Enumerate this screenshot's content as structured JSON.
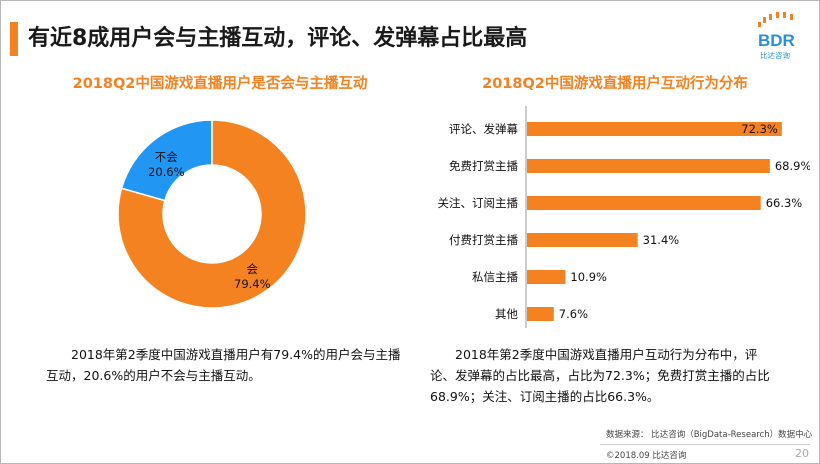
{
  "header": {
    "title": "有近8成用户会与主播互动，评论、发弹幕占比最高",
    "logo_text": "BDR",
    "logo_subtext": "比达咨询"
  },
  "colors": {
    "accent": "#F58220",
    "blue": "#2196F3"
  },
  "chart_data": [
    {
      "type": "pie",
      "donut": true,
      "title": "2018Q2中国游戏直播用户是否会与主播互动",
      "slices": [
        {
          "label": "不会",
          "value": 20.6,
          "display": "20.6%",
          "color": "#2196F3"
        },
        {
          "label": "会",
          "value": 79.4,
          "display": "79.4%",
          "color": "#F58220"
        }
      ]
    },
    {
      "type": "bar",
      "orientation": "horizontal",
      "title": "2018Q2中国游戏直播用户互动行为分布",
      "categories": [
        "评论、发弹幕",
        "免费打赏主播",
        "关注、订阅主播",
        "付费打赏主播",
        "私信主播",
        "其他"
      ],
      "values": [
        72.3,
        68.9,
        66.3,
        31.4,
        10.9,
        7.6
      ],
      "value_labels": [
        "72.3%",
        "68.9%",
        "66.3%",
        "31.4%",
        "10.9%",
        "7.6%"
      ],
      "xlim": [
        0,
        80
      ],
      "color": "#F58220",
      "grid": false
    }
  ],
  "descriptions": {
    "left": "2018年第2季度中国游戏直播用户有79.4%的用户会与主播互动，20.6%的用户不会与主播互动。",
    "right": "2018年第2季度中国游戏直播用户互动行为分布中，评论、发弹幕的占比最高，占比为72.3%；免费打赏主播的占比68.9%；关注、订阅主播的占比66.3%。"
  },
  "footer": {
    "source": "数据来源：  比达咨询（BigData-Research）数据中心",
    "copyright": "©2018.09  比达咨询",
    "page": "20"
  }
}
